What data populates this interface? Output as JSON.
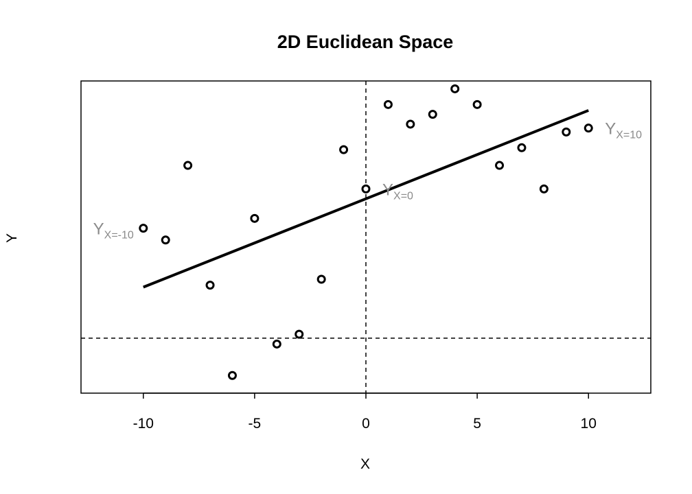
{
  "chart_data": {
    "type": "scatter",
    "title": "2D Euclidean Space",
    "xlabel": "X",
    "ylabel": "Y",
    "xlim": [
      -12.8,
      12.8
    ],
    "ylim": [
      -10.7,
      5.2
    ],
    "xticks": [
      -10,
      -5,
      0,
      5,
      10
    ],
    "xtick_labels": [
      "-10",
      "-5",
      "0",
      "5",
      "10"
    ],
    "yticks_shown": false,
    "grid": false,
    "reference_lines": {
      "x": 0,
      "y": -7.9
    },
    "points": {
      "x": [
        -10,
        -9,
        -8,
        -7,
        -6,
        -5,
        -4,
        -3,
        -2,
        -1,
        0,
        1,
        2,
        3,
        4,
        5,
        6,
        7,
        8,
        9,
        10
      ],
      "y": [
        -2.3,
        -2.9,
        0.9,
        -5.2,
        -9.8,
        -1.8,
        -8.2,
        -7.7,
        -4.9,
        1.7,
        -0.3,
        4.0,
        3.0,
        3.5,
        4.8,
        4.0,
        0.9,
        1.8,
        -0.3,
        2.6,
        2.8
      ]
    },
    "fit_line": {
      "x": [
        -10,
        10
      ],
      "y": [
        -5.3,
        3.7
      ]
    },
    "annotations": [
      {
        "main": "Y",
        "sub": "X=-10",
        "x": -10,
        "y": -2.3,
        "anchor": "left"
      },
      {
        "main": "Y",
        "sub": "X=0",
        "x": 0,
        "y": -0.3,
        "anchor": "right"
      },
      {
        "main": "Y",
        "sub": "X=10",
        "x": 10,
        "y": 2.8,
        "anchor": "right"
      }
    ]
  }
}
